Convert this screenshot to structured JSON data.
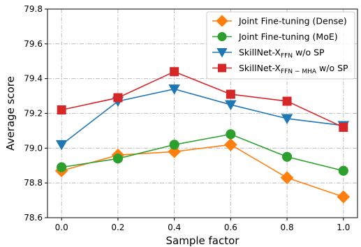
{
  "chart_data": {
    "type": "line",
    "xlabel": "Sample factor",
    "ylabel": "Average score",
    "x": [
      0.0,
      0.2,
      0.4,
      0.6,
      0.8,
      1.0
    ],
    "x_tick_labels": [
      "0.0",
      "0.2",
      "0.4",
      "0.6",
      "0.8",
      "1.0"
    ],
    "xlim": [
      -0.05,
      1.05
    ],
    "ylim": [
      78.6,
      79.8
    ],
    "y_ticks": [
      78.6,
      78.8,
      79.0,
      79.2,
      79.4,
      79.6,
      79.8
    ],
    "y_tick_labels": [
      "78.6",
      "78.8",
      "79.0",
      "79.2",
      "79.4",
      "79.6",
      "79.8"
    ],
    "grid": true,
    "legend_position": "top-right",
    "series": [
      {
        "name": "Joint Fine-tuning (Dense)",
        "name_main": "Joint Fine-tuning (Dense)",
        "name_sub": "",
        "name_tail": "",
        "color": "#ff7f0e",
        "marker": "diamond",
        "values": [
          78.87,
          78.96,
          78.98,
          79.02,
          78.83,
          78.72
        ]
      },
      {
        "name": "Joint Fine-tuning (MoE)",
        "name_main": "Joint Fine-tuning (MoE)",
        "name_sub": "",
        "name_tail": "",
        "color": "#2ca02c",
        "marker": "circle",
        "values": [
          78.89,
          78.94,
          79.02,
          79.08,
          78.95,
          78.87
        ]
      },
      {
        "name": "SkillNet-XFFN w/o SP",
        "name_main": "SkillNet-X",
        "name_sub": "FFN",
        "name_tail": " w/o SP",
        "color": "#1f77b4",
        "marker": "triangle-down",
        "values": [
          79.02,
          79.27,
          79.34,
          79.25,
          79.17,
          79.13
        ]
      },
      {
        "name": "SkillNet-XFFN−MHA w/o SP",
        "name_main": "SkillNet-X",
        "name_sub": "FFN − MHA",
        "name_tail": " w/o SP",
        "color": "#d62728",
        "marker": "square",
        "values": [
          79.22,
          79.29,
          79.44,
          79.31,
          79.27,
          79.12
        ]
      }
    ]
  }
}
